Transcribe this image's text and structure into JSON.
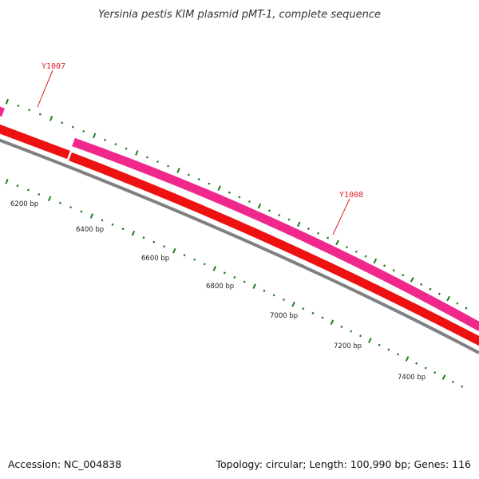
{
  "title": "Yersinia pestis KIM plasmid pMT-1, complete sequence",
  "accession": "Accession: NC_004838",
  "topology": "Topology: circular; Length: 100,990 bp; Genes: 116",
  "colors": {
    "backbone": "#808080",
    "cds_forward": "#f0288c",
    "cds_reverse": "#ee1111",
    "ticks": "#1f7a1f",
    "gene_label": "#e2202a"
  },
  "bp_labels": [
    "6200 bp",
    "6400 bp",
    "6600 bp",
    "6800 bp",
    "7000 bp",
    "7200 bp",
    "7400 bp"
  ],
  "genes": [
    {
      "label": "Y1007"
    },
    {
      "label": "Y1008"
    }
  ]
}
